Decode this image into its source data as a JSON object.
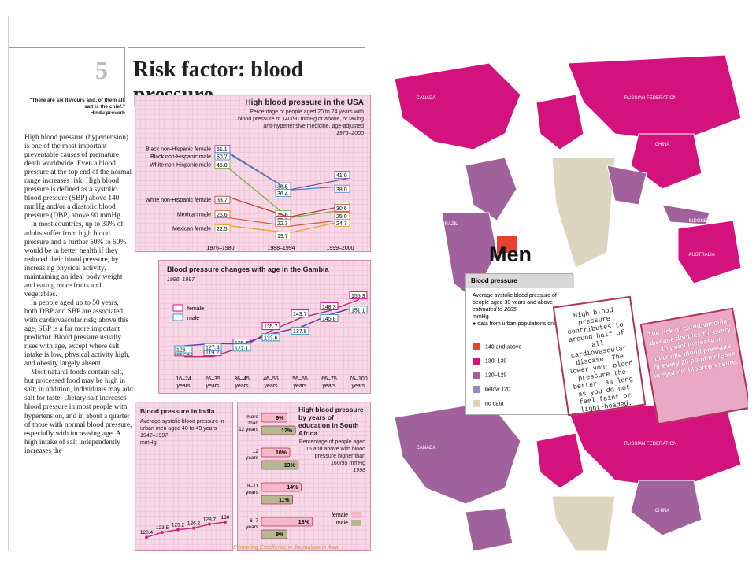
{
  "chapter": {
    "number": "5",
    "title": "Risk factor: blood pressure"
  },
  "quote": {
    "text": "\"There are six flavours and, of them all, salt is the chief.\"",
    "author": "Hindu proverb"
  },
  "body": [
    "High blood pressure (hypertension) is one of the most important preventable causes of premature death worldwide. Even a blood pressure at the top end of the normal range increases risk. High blood pressure is defined as a systolic blood pressure (SBP) above 140 mmHg and/or a diastolic blood pressure (DBP) above 90 mmHg.",
    "In most countries, up to 30% of adults suffer from high blood pressure and a further 50% to 60% would be in better health if they reduced their blood pressure, by increasing physical activity, maintaining an ideal body weight and eating more fruits and vegetables.",
    "In people aged up to 50 years, both DBP and SBP are associated with cardiovascular risk; above this age, SBP is a far more important predictor. Blood pressure usually rises with age, except where salt intake is low, physical activity high, and obesity largely absent.",
    "Most natural foods contain salt, but processed food may be high in salt; in addition, individuals may add salt for taste. Dietary salt increases blood pressure in most people with hypertension, and in about a quarter of those with normal blood pressure, especially with increasing age. A high intake of salt independently increases the"
  ],
  "usa": {
    "title": "High blood pressure in the USA",
    "subtitle": "Percentage of people aged 20 to 74 years with blood pressure of 140/90 mmHg or above, or taking anti-hypertensive medicine, age-adjusted",
    "period": "1976–2000",
    "periods": [
      "1976–1980",
      "1988–1994",
      "1999–2000"
    ]
  },
  "gambia": {
    "title": "Blood pressure changes with age in the Gambia",
    "period": "1996–1997",
    "legend": [
      "female",
      "male"
    ]
  },
  "india": {
    "title": "Blood pressure in India",
    "subtitle": "Average systolic blood pressure in urban men aged 40 to 49 years",
    "period": "1942–1997",
    "unit": "mmHg"
  },
  "sa": {
    "title": "High blood pressure by years of education in South Africa",
    "subtitle": "Percentage of people aged 15 and above with blood pressure higher than 160/95 mmHg",
    "period": "1998",
    "legend": [
      "female",
      "male"
    ]
  },
  "chart_data": [
    {
      "type": "line",
      "title": "High blood pressure in the USA",
      "categories": [
        "1976–1980",
        "1988–1994",
        "1999–2000"
      ],
      "series": [
        {
          "name": "Black non-Hispanic female",
          "values": [
            51.1,
            36.5,
            41.0
          ]
        },
        {
          "name": "Black non-Hispanic male",
          "values": [
            50.7,
            36.4,
            38.0
          ]
        },
        {
          "name": "White non-Hispanic male",
          "values": [
            45.0,
            25.6,
            28.9
          ]
        },
        {
          "name": "White non-Hispanic female",
          "values": [
            33.7,
            25.9,
            30.6
          ]
        },
        {
          "name": "Mexican male",
          "values": [
            25.6,
            22.3,
            25.0
          ]
        },
        {
          "name": "Mexican female",
          "values": [
            22.5,
            19.7,
            24.7
          ]
        }
      ],
      "ylim": [
        15,
        55
      ]
    },
    {
      "type": "line",
      "title": "Blood pressure changes with age in the Gambia",
      "categories": [
        "16–24 years",
        "26–35 years",
        "36–45 years",
        "46–55 years",
        "56–65 years",
        "66–75 years",
        "76–100 years"
      ],
      "series": [
        {
          "name": "female",
          "values": [
            119.1,
            119.2,
            125.2,
            135.7,
            143.7,
            148.3,
            155.3
          ]
        },
        {
          "name": "male",
          "values": [
            126,
            127.4,
            127.1,
            133.6,
            137.8,
            145.8,
            151.1
          ]
        }
      ],
      "ylim": [
        110,
        160
      ]
    },
    {
      "type": "line",
      "title": "Blood pressure in India",
      "values": [
        120.4,
        123.5,
        125.2,
        126.2,
        128.7,
        130
      ],
      "ylim": [
        115,
        135
      ]
    },
    {
      "type": "bar",
      "title": "High blood pressure by years of education in South Africa",
      "categories": [
        "more than 12 years",
        "12 years",
        "8–11 years",
        "6–7 years"
      ],
      "series": [
        {
          "name": "female",
          "values": [
            9,
            10,
            14,
            18
          ]
        },
        {
          "name": "male",
          "values": [
            12,
            13,
            11,
            9
          ]
        }
      ],
      "value_suffix": "%"
    }
  ],
  "map": {
    "heading": "Men",
    "legend_title": "Blood pressure",
    "legend_text": "Average systolic blood pressure of people aged 30 years and above",
    "legend_estimate": "estimated to 2005",
    "legend_unit": "mmHg",
    "legend_note": "● data from urban populations only",
    "legend_items": [
      {
        "label": "140 and above",
        "color": "#e8412e"
      },
      {
        "label": "130–139",
        "color": "#d4127d"
      },
      {
        "label": "120–129",
        "color": "#a0619c"
      },
      {
        "label": "below 120",
        "color": "#9a88c4"
      },
      {
        "label": "no data",
        "color": "#ddd5c0"
      }
    ],
    "countries_top": [
      "CANADA",
      "RUSSIAN FEDERATION",
      "CHINA",
      "BRAZIL",
      "AUSTRALIA",
      "INDONESIA",
      "ICELAND"
    ],
    "countries_bottom": [
      "CANADA",
      "RUSSIAN FEDERATION",
      "CHINA"
    ]
  },
  "note_card": "High blood pressure contributes to around half of all cardiovascular disease. The lower your blood pressure the better, as long as you do not feel faint or light-headed.",
  "risk_card": "The risk of cardiovascular disease doubles for every 10 point increase in diastolic blood pressure or every 20 point increase in systolic blood pressure.",
  "footer": "Promoting Excellence in Journalism in Asia"
}
